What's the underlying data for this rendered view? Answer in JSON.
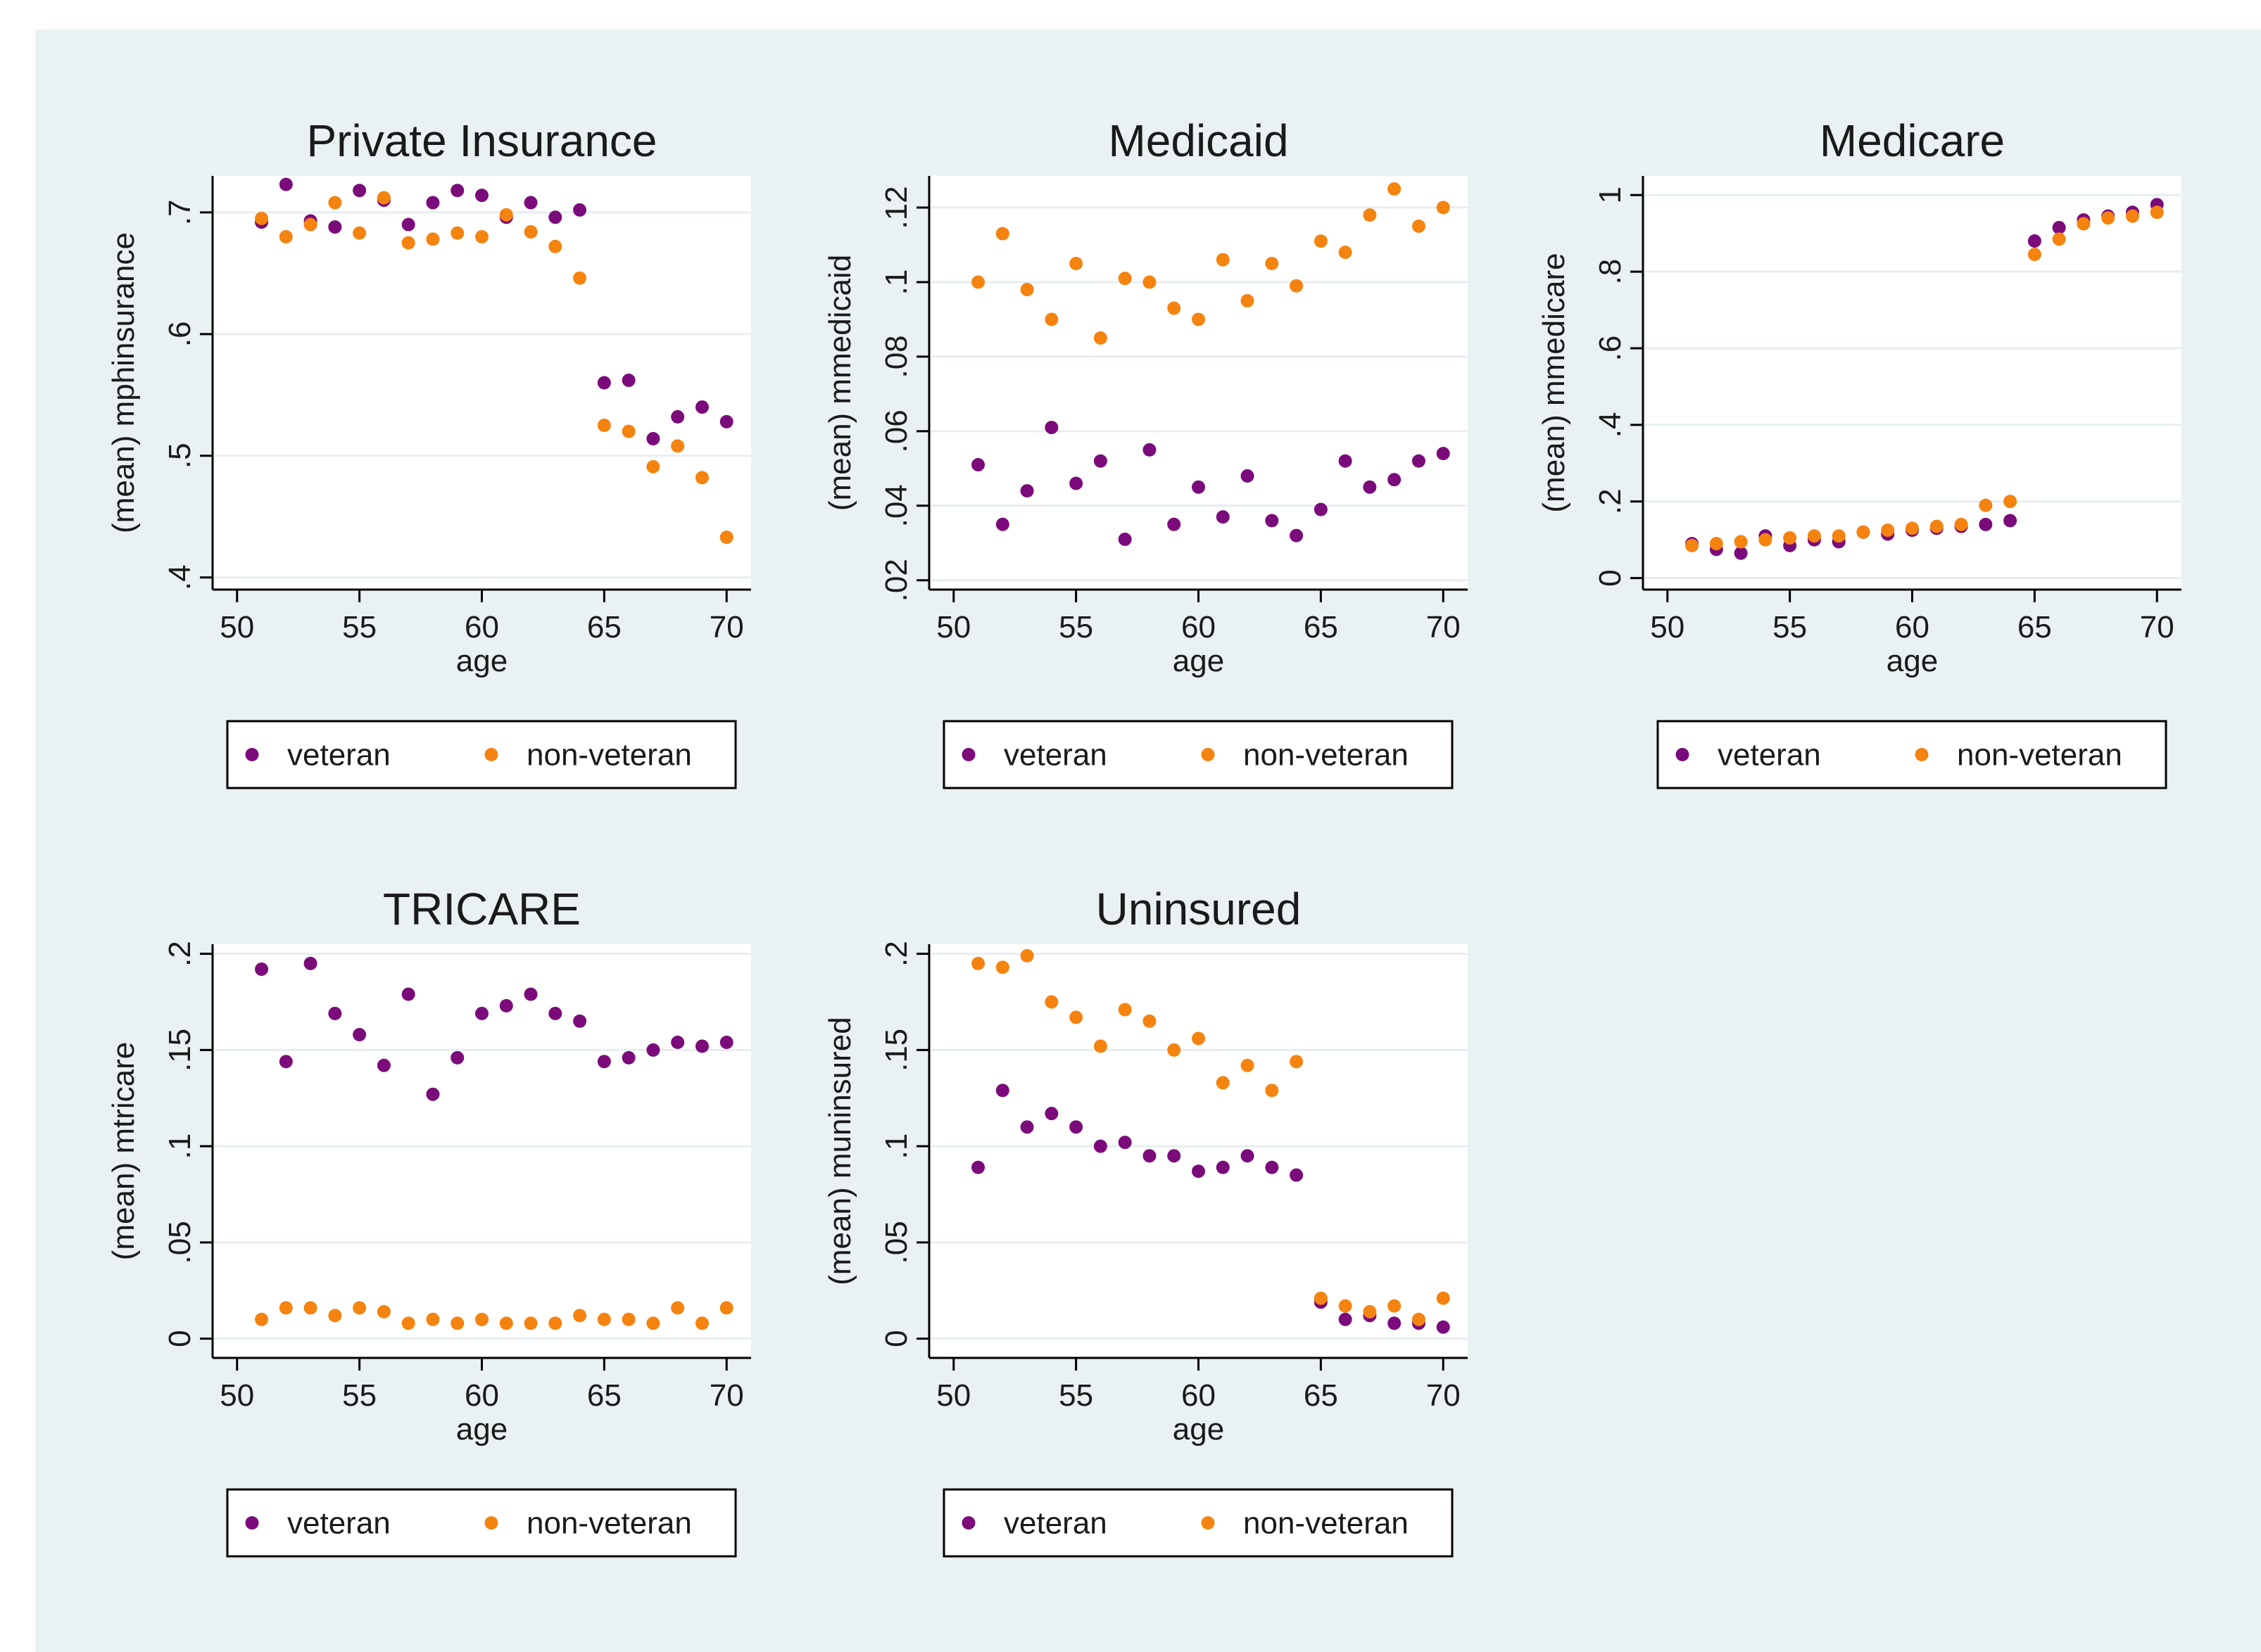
{
  "figure": {
    "background": "#eaf1f3",
    "plot_background": "#ffffff",
    "grid_color": "#e6eef2",
    "veteran_color": "#7b0b7b",
    "nonveteran_color": "#f5830f"
  },
  "chart_data": [
    {
      "type": "scatter",
      "title": "Private Insurance",
      "xlabel": "age",
      "ylabel": "(mean) mphinsurance",
      "xlim": [
        49,
        71
      ],
      "ylim": [
        0.39,
        0.73
      ],
      "xticks": [
        50,
        55,
        60,
        65,
        70
      ],
      "xtick_labels": [
        "50",
        "55",
        "60",
        "65",
        "70"
      ],
      "yticks": [
        0.4,
        0.5,
        0.6,
        0.7
      ],
      "ytick_labels": [
        ".4",
        ".5",
        ".6",
        ".7"
      ],
      "legend": [
        "veteran",
        "non-veteran"
      ],
      "x": [
        51,
        52,
        53,
        54,
        55,
        56,
        57,
        58,
        59,
        60,
        61,
        62,
        63,
        64,
        65,
        66,
        67,
        68,
        69,
        70
      ],
      "series": [
        {
          "name": "veteran",
          "values": [
            0.692,
            0.723,
            0.693,
            0.688,
            0.718,
            0.71,
            0.69,
            0.708,
            0.718,
            0.714,
            0.696,
            0.708,
            0.696,
            0.702,
            0.56,
            0.562,
            0.514,
            0.532,
            0.54,
            0.528
          ]
        },
        {
          "name": "non-veteran",
          "values": [
            0.695,
            0.68,
            0.69,
            0.708,
            0.683,
            0.712,
            0.675,
            0.678,
            0.683,
            0.68,
            0.698,
            0.684,
            0.672,
            0.646,
            0.525,
            0.52,
            0.491,
            0.508,
            0.482,
            0.433
          ]
        }
      ]
    },
    {
      "type": "scatter",
      "title": "Medicaid",
      "xlabel": "age",
      "ylabel": "(mean) mmedicaid",
      "xlim": [
        49,
        71
      ],
      "ylim": [
        0.0175,
        0.1285
      ],
      "xticks": [
        50,
        55,
        60,
        65,
        70
      ],
      "xtick_labels": [
        "50",
        "55",
        "60",
        "65",
        "70"
      ],
      "yticks": [
        0.02,
        0.04,
        0.06,
        0.08,
        0.1,
        0.12
      ],
      "ytick_labels": [
        ".02",
        ".04",
        ".06",
        ".08",
        ".1",
        ".12"
      ],
      "legend": [
        "veteran",
        "non-veteran"
      ],
      "x": [
        51,
        52,
        53,
        54,
        55,
        56,
        57,
        58,
        59,
        60,
        61,
        62,
        63,
        64,
        65,
        66,
        67,
        68,
        69,
        70
      ],
      "series": [
        {
          "name": "veteran",
          "values": [
            0.051,
            0.035,
            0.044,
            0.061,
            0.046,
            0.052,
            0.031,
            0.055,
            0.035,
            0.045,
            0.037,
            0.048,
            0.036,
            0.032,
            0.039,
            0.052,
            0.045,
            0.047,
            0.052,
            0.054
          ]
        },
        {
          "name": "non-veteran",
          "values": [
            0.1,
            0.113,
            0.098,
            0.09,
            0.105,
            0.085,
            0.101,
            0.1,
            0.093,
            0.09,
            0.106,
            0.095,
            0.105,
            0.099,
            0.111,
            0.108,
            0.118,
            0.125,
            0.115,
            0.12
          ]
        }
      ]
    },
    {
      "type": "scatter",
      "title": "Medicare",
      "xlabel": "age",
      "ylabel": "(mean) mmedicare",
      "xlim": [
        49,
        71
      ],
      "ylim": [
        -0.03,
        1.05
      ],
      "xticks": [
        50,
        55,
        60,
        65,
        70
      ],
      "xtick_labels": [
        "50",
        "55",
        "60",
        "65",
        "70"
      ],
      "yticks": [
        0,
        0.2,
        0.4,
        0.6,
        0.8,
        1
      ],
      "ytick_labels": [
        "0",
        ".2",
        ".4",
        ".6",
        ".8",
        "1"
      ],
      "legend": [
        "veteran",
        "non-veteran"
      ],
      "x": [
        51,
        52,
        53,
        54,
        55,
        56,
        57,
        58,
        59,
        60,
        61,
        62,
        63,
        64,
        65,
        66,
        67,
        68,
        69,
        70
      ],
      "series": [
        {
          "name": "veteran",
          "values": [
            0.09,
            0.075,
            0.065,
            0.11,
            0.085,
            0.1,
            0.095,
            0.12,
            0.115,
            0.125,
            0.13,
            0.135,
            0.14,
            0.15,
            0.88,
            0.915,
            0.935,
            0.945,
            0.955,
            0.975
          ]
        },
        {
          "name": "non-veteran",
          "values": [
            0.085,
            0.09,
            0.095,
            0.1,
            0.105,
            0.11,
            0.11,
            0.12,
            0.125,
            0.13,
            0.135,
            0.14,
            0.19,
            0.2,
            0.845,
            0.885,
            0.925,
            0.94,
            0.945,
            0.955
          ]
        }
      ]
    },
    {
      "type": "scatter",
      "title": "TRICARE",
      "xlabel": "age",
      "ylabel": "(mean) mtricare",
      "xlim": [
        49,
        71
      ],
      "ylim": [
        -0.01,
        0.205
      ],
      "xticks": [
        50,
        55,
        60,
        65,
        70
      ],
      "xtick_labels": [
        "50",
        "55",
        "60",
        "65",
        "70"
      ],
      "yticks": [
        0,
        0.05,
        0.1,
        0.15,
        0.2
      ],
      "ytick_labels": [
        "0",
        ".05",
        ".1",
        ".15",
        ".2"
      ],
      "legend": [
        "veteran",
        "non-veteran"
      ],
      "x": [
        51,
        52,
        53,
        54,
        55,
        56,
        57,
        58,
        59,
        60,
        61,
        62,
        63,
        64,
        65,
        66,
        67,
        68,
        69,
        70
      ],
      "series": [
        {
          "name": "veteran",
          "values": [
            0.192,
            0.144,
            0.195,
            0.169,
            0.158,
            0.142,
            0.179,
            0.127,
            0.146,
            0.169,
            0.173,
            0.179,
            0.169,
            0.165,
            0.144,
            0.146,
            0.15,
            0.154,
            0.152,
            0.154
          ]
        },
        {
          "name": "non-veteran",
          "values": [
            0.01,
            0.016,
            0.016,
            0.012,
            0.016,
            0.014,
            0.008,
            0.01,
            0.008,
            0.01,
            0.008,
            0.008,
            0.008,
            0.012,
            0.01,
            0.01,
            0.008,
            0.016,
            0.008,
            0.016
          ]
        }
      ]
    },
    {
      "type": "scatter",
      "title": "Uninsured",
      "xlabel": "age",
      "ylabel": "(mean) muninsured",
      "xlim": [
        49,
        71
      ],
      "ylim": [
        -0.01,
        0.205
      ],
      "xticks": [
        50,
        55,
        60,
        65,
        70
      ],
      "xtick_labels": [
        "50",
        "55",
        "60",
        "65",
        "70"
      ],
      "yticks": [
        0,
        0.05,
        0.1,
        0.15,
        0.2
      ],
      "ytick_labels": [
        "0",
        ".05",
        ".1",
        ".15",
        ".2"
      ],
      "legend": [
        "veteran",
        "non-veteran"
      ],
      "x": [
        51,
        52,
        53,
        54,
        55,
        56,
        57,
        58,
        59,
        60,
        61,
        62,
        63,
        64,
        65,
        66,
        67,
        68,
        69,
        70
      ],
      "series": [
        {
          "name": "veteran",
          "values": [
            0.089,
            0.129,
            0.11,
            0.117,
            0.11,
            0.1,
            0.102,
            0.095,
            0.095,
            0.087,
            0.089,
            0.095,
            0.089,
            0.085,
            0.019,
            0.01,
            0.012,
            0.008,
            0.008,
            0.006
          ]
        },
        {
          "name": "non-veteran",
          "values": [
            0.195,
            0.193,
            0.199,
            0.175,
            0.167,
            0.152,
            0.171,
            0.165,
            0.15,
            0.156,
            0.133,
            0.142,
            0.129,
            0.144,
            0.021,
            0.017,
            0.014,
            0.017,
            0.01,
            0.021
          ]
        }
      ]
    }
  ]
}
